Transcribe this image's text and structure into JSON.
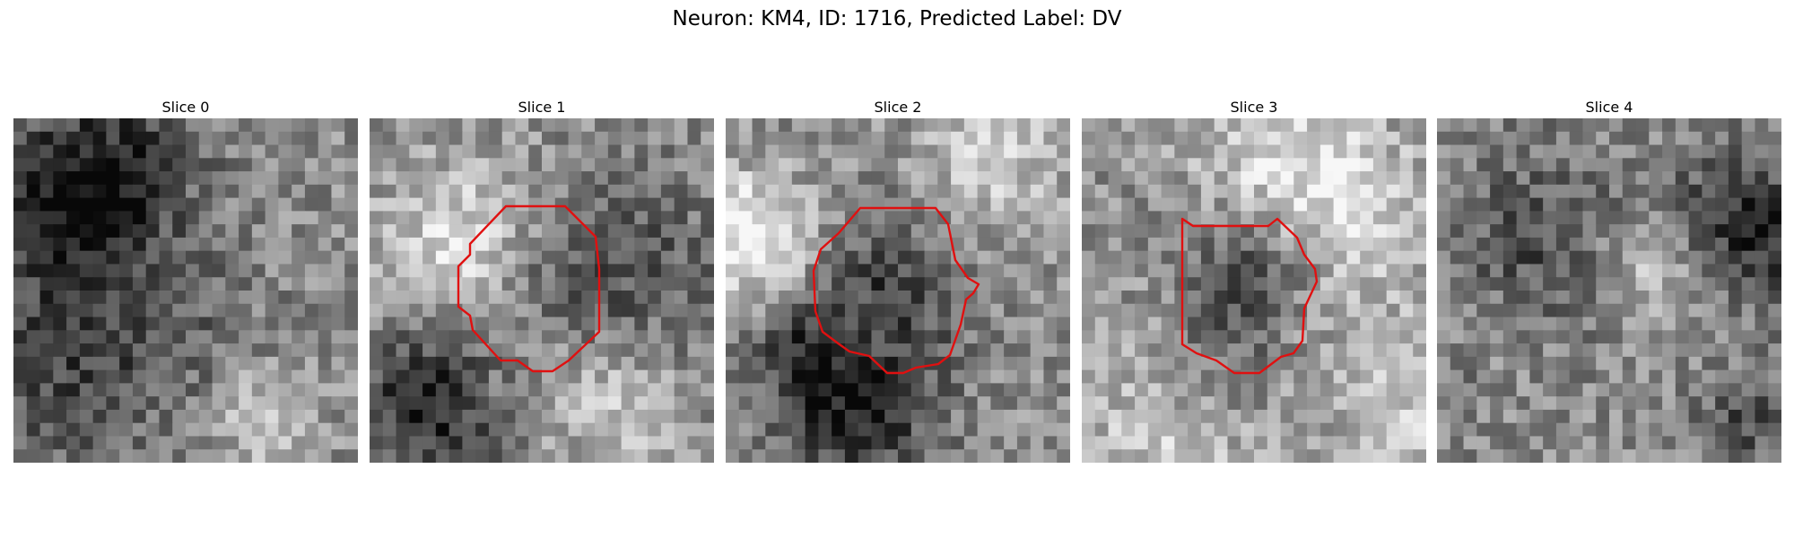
{
  "figure": {
    "title": "Neuron: KM4, ID: 1716, Predicted Label: DV",
    "contour_color": "#e01010",
    "grid_size": 26,
    "panels": [
      {
        "title": "Slice 0",
        "seed": 11,
        "dark_center": false,
        "contour": null
      },
      {
        "title": "Slice 1",
        "seed": 23,
        "dark_center": true,
        "contour": "octagon"
      },
      {
        "title": "Slice 2",
        "seed": 37,
        "dark_center": true,
        "contour": "blob"
      },
      {
        "title": "Slice 3",
        "seed": 51,
        "dark_center": true,
        "contour": "square"
      },
      {
        "title": "Slice 4",
        "seed": 67,
        "dark_center": false,
        "contour": null
      }
    ]
  }
}
